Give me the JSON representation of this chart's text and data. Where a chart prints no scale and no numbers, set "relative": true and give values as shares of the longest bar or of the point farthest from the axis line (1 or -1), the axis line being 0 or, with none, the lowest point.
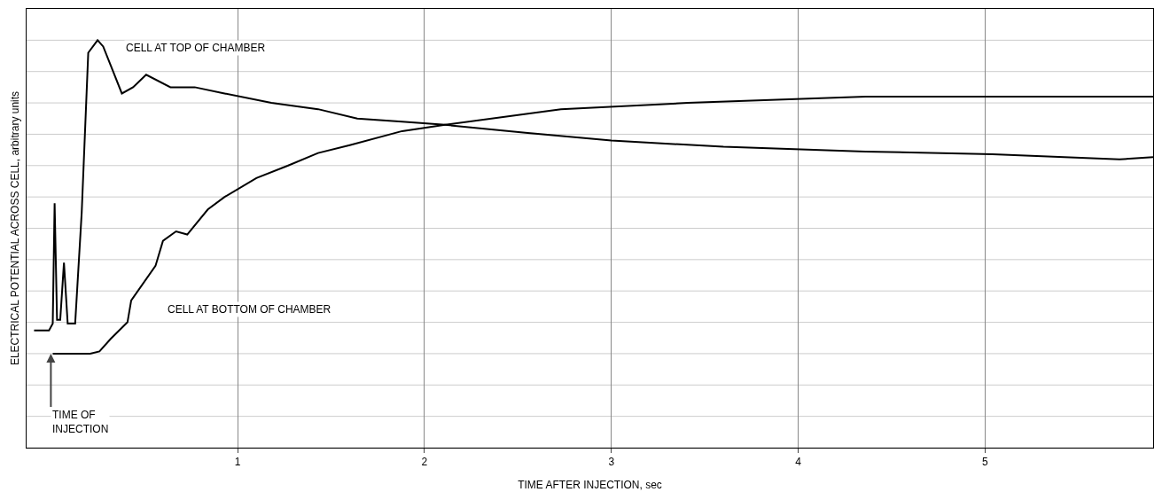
{
  "chart_data": {
    "type": "line",
    "relative": true,
    "xlabel": "TIME AFTER INJECTION, sec",
    "ylabel": "ELECTRICAL POTENTIAL ACROSS CELL, arbitrary units",
    "xlim": [
      -0.13,
      5.9
    ],
    "xticks": [
      1,
      2,
      3,
      4,
      5
    ],
    "grid": true,
    "legend": false,
    "marker": "none",
    "line_style": "solid",
    "annotations": [
      {
        "text": "TIME OF INJECTION",
        "x": 0,
        "y": 0
      }
    ],
    "series": [
      {
        "name": "CELL AT TOP OF CHAMBER",
        "color": "#000000",
        "x": [
          -0.09,
          -0.01,
          0.01,
          0.02,
          0.033,
          0.05,
          0.07,
          0.09,
          0.13,
          0.165,
          0.2,
          0.25,
          0.28,
          0.32,
          0.38,
          0.44,
          0.51,
          0.64,
          0.77,
          0.93,
          1.18,
          1.43,
          1.64,
          1.88,
          2.11,
          2.54,
          3.0,
          3.6,
          4.36,
          5.04,
          5.72,
          5.9
        ],
        "values": [
          0.074,
          0.074,
          0.096,
          0.48,
          0.108,
          0.108,
          0.29,
          0.096,
          0.096,
          0.45,
          0.96,
          1,
          0.98,
          0.92,
          0.83,
          0.85,
          0.89,
          0.85,
          0.85,
          0.83,
          0.8,
          0.78,
          0.75,
          0.74,
          0.73,
          0.705,
          0.68,
          0.66,
          0.645,
          0.636,
          0.62,
          0.627
        ]
      },
      {
        "name": "CELL AT BOTTOM OF CHAMBER",
        "color": "#000000",
        "x": [
          0.01,
          0.21,
          0.26,
          0.32,
          0.41,
          0.43,
          0.56,
          0.6,
          0.67,
          0.73,
          0.84,
          0.93,
          1.1,
          1.27,
          1.43,
          1.6,
          1.88,
          2.11,
          2.73,
          3.41,
          4.36,
          5.18,
          5.9
        ],
        "values": [
          0,
          0,
          0.007,
          0.047,
          0.1,
          0.17,
          0.28,
          0.36,
          0.39,
          0.38,
          0.46,
          0.5,
          0.56,
          0.6,
          0.64,
          0.665,
          0.71,
          0.73,
          0.78,
          0.8,
          0.82,
          0.82,
          0.82
        ]
      }
    ]
  }
}
